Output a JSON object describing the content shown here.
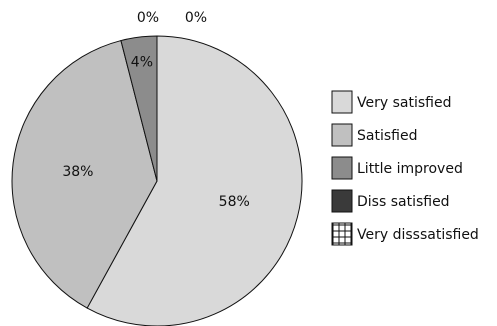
{
  "chart_data": {
    "type": "pie",
    "slices": [
      {
        "label": "Very satisfied",
        "value": 58,
        "value_label": "58%",
        "color": "#d9d9d9"
      },
      {
        "label": "Satisfied",
        "value": 38,
        "value_label": "38%",
        "color": "#c0c0c0"
      },
      {
        "label": "Little improved",
        "value": 4,
        "value_label": "4%",
        "color": "#8c8c8c"
      },
      {
        "label": "Diss satisfied",
        "value": 0,
        "value_label": "0%",
        "color": "#3a3a3a"
      },
      {
        "label": "Very disssatisfied",
        "value": 0,
        "value_label": "0%",
        "color": "#ffffff",
        "pattern": "grid"
      }
    ],
    "legend_position": "right"
  }
}
